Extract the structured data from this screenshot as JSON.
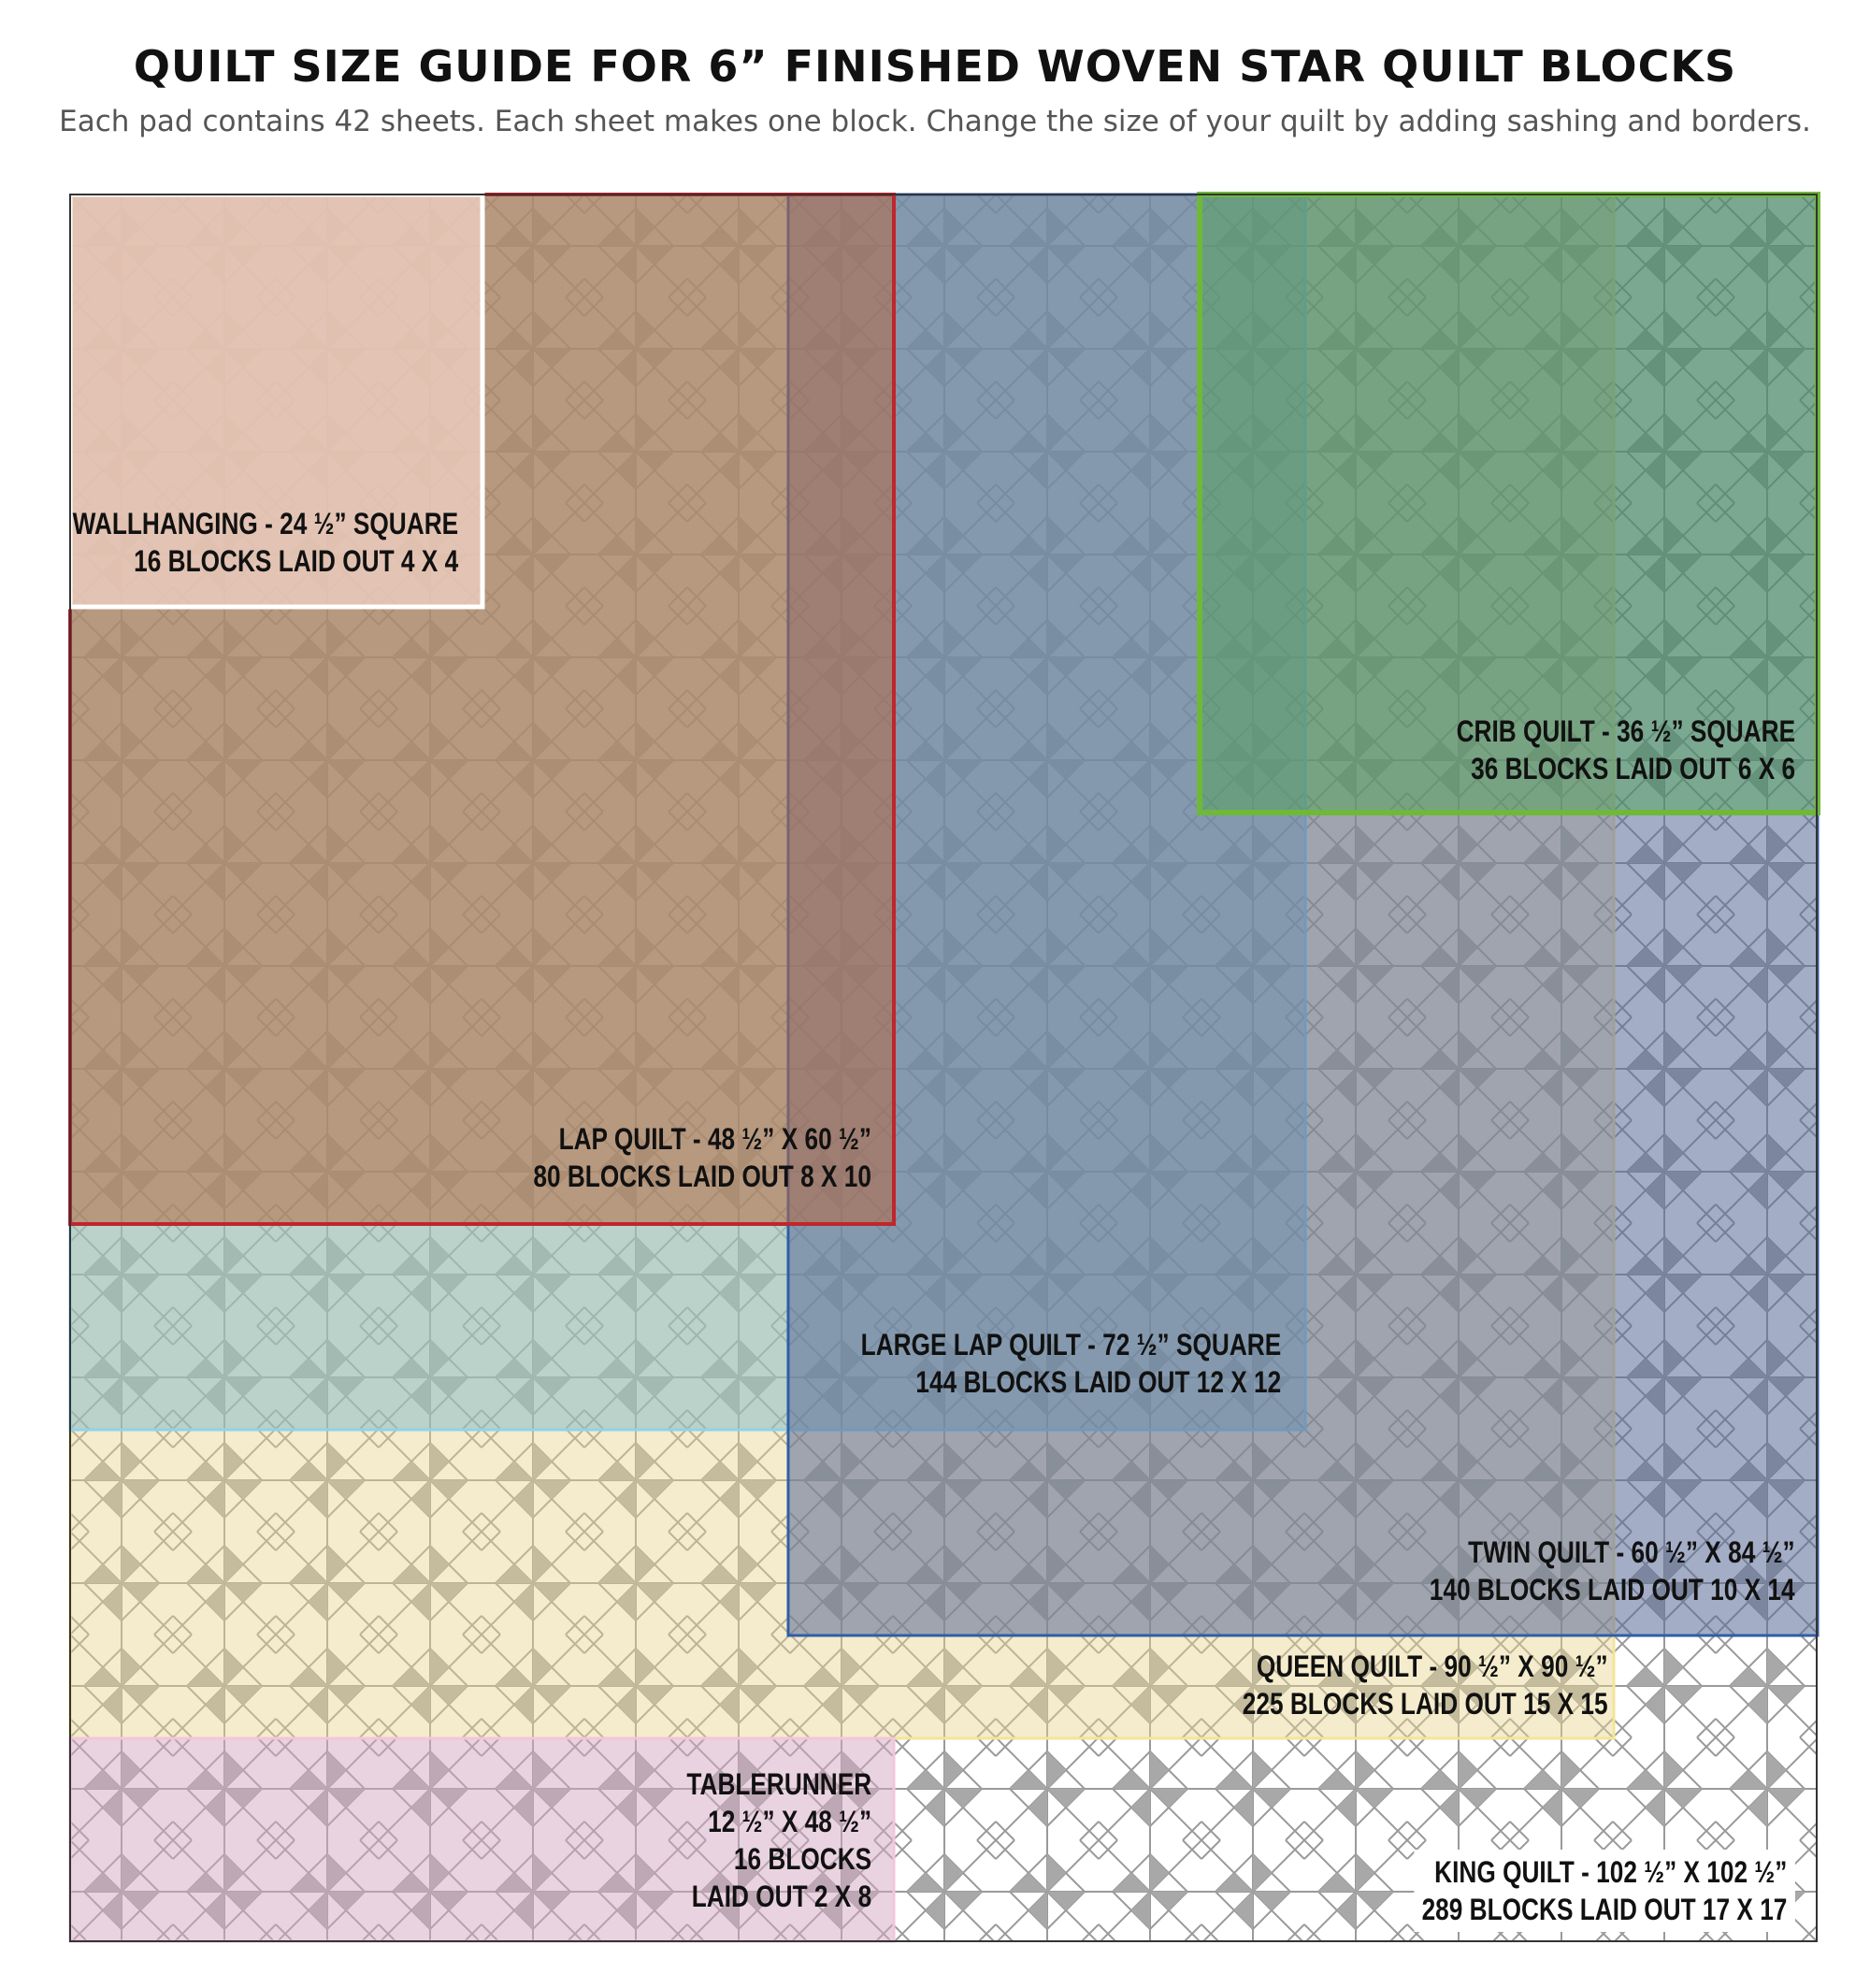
{
  "header": {
    "title": "QUILT SIZE GUIDE FOR 6” FINISHED WOVEN STAR QUILT BLOCKS",
    "subtitle": "Each pad contains 42 sheets.  Each sheet makes one block. Change the size of your quilt by adding sashing and borders."
  },
  "sizes": {
    "wallhanging": {
      "line1": "WALLHANGING - 24 ½” SQUARE",
      "line2": "16 BLOCKS LAID OUT 4 X 4",
      "fill": "#e7c9bd",
      "border": "#ffffff"
    },
    "lap": {
      "line1": "LAP QUILT - 48 ½” X 60 ½”",
      "line2": "80 BLOCKS LAID OUT 8 X 10",
      "fill": "#bf8f79",
      "border": "#c0262c"
    },
    "crib": {
      "line1": "CRIB QUILT - 36 ½” SQUARE",
      "line2": "36 BLOCKS LAID OUT 6 X 6",
      "fill": "#72a87c",
      "border": "#6fb83a"
    },
    "large_lap": {
      "line1": "LARGE LAP QUILT - 72 ½” SQUARE",
      "line2": "144 BLOCKS LAID OUT 12 X 12",
      "fill": "#8fb5c6",
      "border": "#8fd3ea"
    },
    "twin": {
      "line1": "TWIN QUILT - 60 ½” X 84 ½”",
      "line2": "140 BLOCKS LAID OUT 10 X 14",
      "fill": "#7d8aab",
      "border": "#2f5ea8"
    },
    "queen": {
      "line1": "QUEEN QUILT - 90 ½” X 90 ½”",
      "line2": "225 BLOCKS LAID OUT 15 X 15",
      "fill": "#e9dfb8",
      "border": "#f3e59a"
    },
    "tablerunner": {
      "line1": "TABLERUNNER",
      "line2": "12 ½” X 48 ½”",
      "line3": "16 BLOCKS",
      "line4": "LAID OUT 2 X 8",
      "fill": "#dcc3cc",
      "border": "#f2c6d8"
    },
    "king": {
      "line1": "KING QUILT - 102 ½” X 102 ½”",
      "line2": "289 BLOCKS LAID OUT 17 X 17",
      "fill": "#ffffff",
      "border": "#333333"
    }
  }
}
